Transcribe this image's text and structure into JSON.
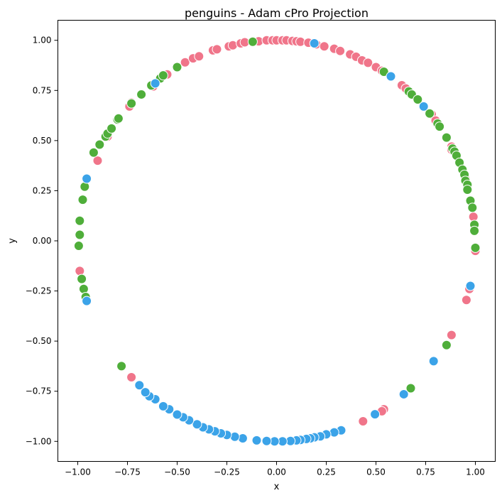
{
  "chart_data": {
    "type": "scatter",
    "title": "penguins - Adam cPro Projection",
    "xlabel": "x",
    "ylabel": "y",
    "xlim": [
      -1.1,
      1.1
    ],
    "ylim": [
      -1.1,
      1.1
    ],
    "grid": false,
    "x_ticks": [
      -1.0,
      -0.75,
      -0.5,
      -0.25,
      0.0,
      0.25,
      0.5,
      0.75,
      1.0
    ],
    "y_ticks": [
      -1.0,
      -0.75,
      -0.5,
      -0.25,
      0.0,
      0.25,
      0.5,
      0.75,
      1.0
    ],
    "x_tick_labels": [
      "−1.00",
      "−0.75",
      "−0.50",
      "−0.25",
      "0.00",
      "0.25",
      "0.50",
      "0.75",
      "1.00"
    ],
    "y_tick_labels": [
      "−1.00",
      "−0.75",
      "−0.50",
      "−0.25",
      "0.00",
      "0.25",
      "0.50",
      "0.75",
      "1.00"
    ],
    "colors": {
      "pink": "#f0758a",
      "green": "#4fae3a",
      "blue": "#3ba3e8"
    },
    "series": [
      {
        "color_key": "pink",
        "points": [
          [
            -0.99,
            -0.15
          ],
          [
            -0.9,
            0.4
          ],
          [
            -0.85,
            0.52
          ],
          [
            -0.74,
            0.67
          ],
          [
            -0.73,
            0.69
          ],
          [
            -0.62,
            0.77
          ],
          [
            -0.55,
            0.83
          ],
          [
            -0.46,
            0.89
          ],
          [
            -0.42,
            0.91
          ],
          [
            -0.39,
            0.92
          ],
          [
            -0.32,
            0.95
          ],
          [
            -0.3,
            0.955
          ],
          [
            -0.24,
            0.97
          ],
          [
            -0.22,
            0.975
          ],
          [
            -0.18,
            0.985
          ],
          [
            -0.16,
            0.99
          ],
          [
            -0.09,
            0.995
          ],
          [
            -0.05,
            1.0
          ],
          [
            -0.02,
            1.0
          ],
          [
            0.0,
            1.0
          ],
          [
            0.03,
            1.0
          ],
          [
            0.05,
            1.0
          ],
          [
            0.08,
            0.997
          ],
          [
            0.1,
            0.995
          ],
          [
            0.12,
            0.993
          ],
          [
            0.16,
            0.988
          ],
          [
            0.2,
            0.98
          ],
          [
            0.24,
            0.97
          ],
          [
            0.29,
            0.958
          ],
          [
            0.32,
            0.947
          ],
          [
            0.37,
            0.93
          ],
          [
            0.4,
            0.918
          ],
          [
            0.43,
            0.9
          ],
          [
            0.46,
            0.888
          ],
          [
            0.5,
            0.866
          ],
          [
            0.53,
            0.848
          ],
          [
            0.63,
            0.776
          ],
          [
            0.65,
            0.76
          ],
          [
            0.78,
            0.63
          ],
          [
            0.8,
            0.6
          ],
          [
            0.88,
            0.47
          ],
          [
            0.88,
            0.455
          ],
          [
            0.92,
            0.39
          ],
          [
            0.95,
            0.31
          ],
          [
            0.99,
            0.12
          ],
          [
            1.0,
            -0.05
          ],
          [
            0.97,
            -0.24
          ],
          [
            0.955,
            -0.295
          ],
          [
            0.88,
            -0.47
          ],
          [
            0.54,
            -0.84
          ],
          [
            0.53,
            -0.85
          ],
          [
            0.435,
            -0.9
          ],
          [
            -0.73,
            -0.68
          ]
        ]
      },
      {
        "color_key": "green",
        "points": [
          [
            -0.99,
            0.03
          ],
          [
            -0.995,
            -0.025
          ],
          [
            -0.99,
            0.1
          ],
          [
            -0.975,
            0.205
          ],
          [
            -0.965,
            0.27
          ],
          [
            -0.98,
            -0.19
          ],
          [
            -0.97,
            -0.24
          ],
          [
            -0.96,
            -0.28
          ],
          [
            -0.92,
            0.44
          ],
          [
            -0.89,
            0.48
          ],
          [
            -0.86,
            0.52
          ],
          [
            -0.85,
            0.535
          ],
          [
            -0.83,
            0.56
          ],
          [
            -0.8,
            0.605
          ],
          [
            -0.795,
            0.61
          ],
          [
            -0.73,
            0.685
          ],
          [
            -0.68,
            0.73
          ],
          [
            -0.63,
            0.775
          ],
          [
            -0.585,
            0.81
          ],
          [
            -0.57,
            0.825
          ],
          [
            -0.5,
            0.866
          ],
          [
            -0.12,
            0.993
          ],
          [
            0.54,
            0.843
          ],
          [
            0.665,
            0.745
          ],
          [
            0.68,
            0.73
          ],
          [
            0.71,
            0.705
          ],
          [
            0.77,
            0.635
          ],
          [
            0.81,
            0.585
          ],
          [
            0.82,
            0.57
          ],
          [
            0.855,
            0.515
          ],
          [
            0.885,
            0.46
          ],
          [
            0.895,
            0.445
          ],
          [
            0.905,
            0.425
          ],
          [
            0.92,
            0.39
          ],
          [
            0.935,
            0.355
          ],
          [
            0.945,
            0.33
          ],
          [
            0.95,
            0.3
          ],
          [
            0.96,
            0.28
          ],
          [
            0.96,
            0.255
          ],
          [
            0.975,
            0.2
          ],
          [
            0.985,
            0.165
          ],
          [
            0.995,
            0.08
          ],
          [
            0.995,
            0.05
          ],
          [
            1.0,
            -0.035
          ],
          [
            0.855,
            -0.52
          ],
          [
            0.675,
            -0.735
          ],
          [
            -0.78,
            -0.625
          ]
        ]
      },
      {
        "color_key": "blue",
        "points": [
          [
            -0.955,
            0.31
          ],
          [
            -0.955,
            -0.3
          ],
          [
            -0.61,
            0.785
          ],
          [
            0.19,
            0.985
          ],
          [
            0.575,
            0.82
          ],
          [
            0.74,
            0.67
          ],
          [
            0.975,
            -0.225
          ],
          [
            0.79,
            -0.6
          ],
          [
            0.64,
            -0.765
          ],
          [
            0.495,
            -0.865
          ],
          [
            0.325,
            -0.945
          ],
          [
            0.29,
            -0.955
          ],
          [
            0.25,
            -0.965
          ],
          [
            0.22,
            -0.975
          ],
          [
            0.19,
            -0.98
          ],
          [
            0.17,
            -0.985
          ],
          [
            0.15,
            -0.988
          ],
          [
            0.12,
            -0.993
          ],
          [
            0.1,
            -0.995
          ],
          [
            0.07,
            -0.998
          ],
          [
            0.03,
            -1.0
          ],
          [
            -0.01,
            -1.0
          ],
          [
            -0.05,
            -0.998
          ],
          [
            -0.1,
            -0.995
          ],
          [
            -0.17,
            -0.985
          ],
          [
            -0.21,
            -0.977
          ],
          [
            -0.25,
            -0.968
          ],
          [
            -0.28,
            -0.96
          ],
          [
            -0.31,
            -0.95
          ],
          [
            -0.34,
            -0.94
          ],
          [
            -0.37,
            -0.93
          ],
          [
            -0.4,
            -0.915
          ],
          [
            -0.44,
            -0.895
          ],
          [
            -0.47,
            -0.88
          ],
          [
            -0.5,
            -0.866
          ],
          [
            -0.54,
            -0.84
          ],
          [
            -0.57,
            -0.825
          ],
          [
            -0.61,
            -0.79
          ],
          [
            -0.64,
            -0.775
          ],
          [
            -0.66,
            -0.755
          ],
          [
            -0.69,
            -0.72
          ]
        ]
      }
    ]
  }
}
